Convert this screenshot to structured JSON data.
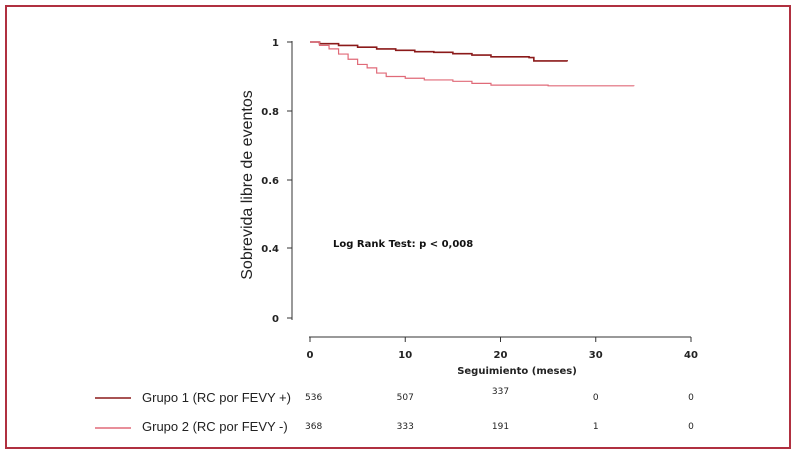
{
  "chart_data": {
    "type": "line",
    "title": "",
    "xlabel": "Seguimiento (meses)",
    "ylabel": "Sobrevida libre de eventos",
    "xlim": [
      0,
      40
    ],
    "ylim": [
      0,
      1
    ],
    "x_ticks": [
      0,
      10,
      20,
      30,
      40
    ],
    "y_ticks": [
      0,
      0.4,
      0.6,
      0.8,
      1
    ],
    "x_tick_labels": [
      "0",
      "10",
      "20",
      "30",
      "40"
    ],
    "y_tick_labels": [
      "0",
      "0.4",
      "0.6",
      "0.8",
      "1"
    ],
    "annotation": "Log Rank Test: p < 0,008",
    "legend_position": "bottom-left",
    "series": [
      {
        "name": "Grupo 1 (RC por FEVY +)",
        "color": "#8b1a1a",
        "points": [
          [
            0,
            1.0
          ],
          [
            1,
            0.995
          ],
          [
            3,
            0.99
          ],
          [
            5,
            0.985
          ],
          [
            7,
            0.98
          ],
          [
            9,
            0.976
          ],
          [
            11,
            0.972
          ],
          [
            13,
            0.97
          ],
          [
            15,
            0.966
          ],
          [
            17,
            0.962
          ],
          [
            19,
            0.957
          ],
          [
            23,
            0.955
          ],
          [
            23.5,
            0.945
          ],
          [
            27,
            0.944
          ]
        ],
        "at_risk": [
          "536",
          "507",
          "337",
          "0",
          "0"
        ]
      },
      {
        "name": "Grupo 2 (RC por FEVY -)",
        "color": "#e06a78",
        "points": [
          [
            0,
            1.0
          ],
          [
            1,
            0.99
          ],
          [
            2,
            0.98
          ],
          [
            3,
            0.965
          ],
          [
            4,
            0.95
          ],
          [
            5,
            0.935
          ],
          [
            6,
            0.925
          ],
          [
            7,
            0.91
          ],
          [
            8,
            0.9
          ],
          [
            10,
            0.895
          ],
          [
            12,
            0.89
          ],
          [
            15,
            0.886
          ],
          [
            17,
            0.88
          ],
          [
            19,
            0.875
          ],
          [
            25,
            0.873
          ],
          [
            34,
            0.872
          ]
        ],
        "at_risk": [
          "368",
          "333",
          "191",
          "1",
          "0"
        ]
      }
    ]
  }
}
